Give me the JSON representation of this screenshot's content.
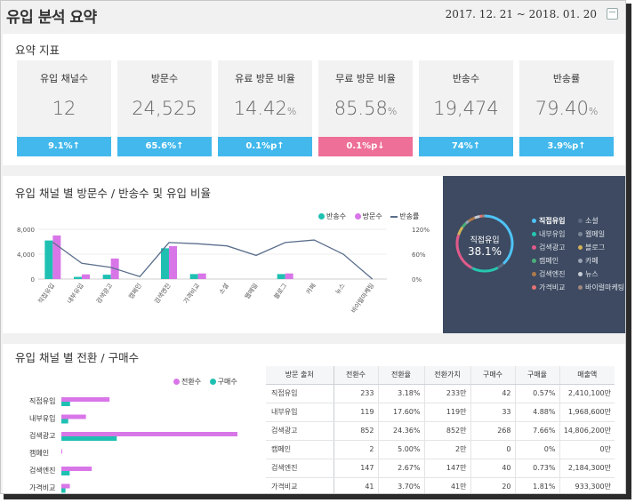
{
  "header": {
    "title": "유입 분석 요약",
    "date_range": "2017. 12. 21 ~ 2018. 01. 20",
    "calendar_icon": "calendar-icon"
  },
  "summary": {
    "title": "요약 지표",
    "cards": [
      {
        "label": "유입 채널수",
        "value": "12",
        "unit": "",
        "change": "9.1%↑",
        "color": "#42b8ec"
      },
      {
        "label": "방문수",
        "value": "24,525",
        "unit": "",
        "change": "65.6%↑",
        "color": "#42b8ec"
      },
      {
        "label": "유료 방문 비율",
        "value": "14.42",
        "unit": "%",
        "change": "0.1%p↑",
        "color": "#42b8ec"
      },
      {
        "label": "무료 방문 비율",
        "value": "85.58",
        "unit": "%",
        "change": "0.1%p↓",
        "color": "#ee6f97"
      },
      {
        "label": "반송수",
        "value": "19,474",
        "unit": "",
        "change": "74%↑",
        "color": "#42b8ec"
      },
      {
        "label": "반송률",
        "value": "79.40",
        "unit": "%",
        "change": "3.9%p↑",
        "color": "#42b8ec"
      }
    ]
  },
  "channel_section": {
    "title": "유입 채널 별 방문수 / 반송수 및 유입 비율",
    "legend": [
      "반송수",
      "방문수",
      "반송률"
    ],
    "donut": {
      "label": "직접유입",
      "value": "38.1%"
    },
    "donut_legend": [
      {
        "name": "직접유입",
        "color": "#4fc3f7",
        "bold": true
      },
      {
        "name": "소셜",
        "color": "#5c6b80",
        "bold": false
      },
      {
        "name": "내부유입",
        "color": "#26c6b0",
        "bold": false
      },
      {
        "name": "웹메일",
        "color": "#7a8597",
        "bold": false
      },
      {
        "name": "검색광고",
        "color": "#e05a8a",
        "bold": false
      },
      {
        "name": "블로그",
        "color": "#d4b25a",
        "bold": false
      },
      {
        "name": "캠페인",
        "color": "#4caf7a",
        "bold": false
      },
      {
        "name": "카페",
        "color": "#9aa3b3",
        "bold": false
      },
      {
        "name": "검색엔진",
        "color": "#b07a4a",
        "bold": false
      },
      {
        "name": "뉴스",
        "color": "#c7cdd6",
        "bold": false
      },
      {
        "name": "가격비교",
        "color": "#e57373",
        "bold": false
      },
      {
        "name": "바이럴마케팅",
        "color": "#a1887f",
        "bold": false
      }
    ]
  },
  "conversion_section": {
    "title": "유입 채널 별 전환 / 구매수",
    "legend": [
      "전환수",
      "구매수"
    ],
    "table": {
      "headers": [
        "방문 출처",
        "전환수",
        "전환율",
        "전환가치",
        "구매수",
        "구매율",
        "매출액"
      ],
      "rows": [
        [
          "직접유입",
          "233",
          "3.18%",
          "233만",
          "42",
          "0.57%",
          "2,410,100만"
        ],
        [
          "내부유입",
          "119",
          "17.60%",
          "119만",
          "33",
          "4.88%",
          "1,968,600만"
        ],
        [
          "검색광고",
          "852",
          "24.36%",
          "852만",
          "268",
          "7.66%",
          "14,806,200만"
        ],
        [
          "캠페인",
          "2",
          "5.00%",
          "2만",
          "0",
          "0%",
          "0만"
        ],
        [
          "검색엔진",
          "147",
          "2.67%",
          "147만",
          "40",
          "0.73%",
          "2,184,300만"
        ],
        [
          "가격비교",
          "41",
          "3.70%",
          "41만",
          "20",
          "1.81%",
          "933,300만"
        ]
      ]
    }
  },
  "chart_data": [
    {
      "type": "bar",
      "title": "유입 채널 별 방문수 / 반송수 및 유입 비율",
      "categories": [
        "직접유입",
        "내부유입",
        "검색광고",
        "캠페인",
        "검색엔진",
        "가격비교",
        "소셜",
        "웹메일",
        "블로그",
        "카페",
        "뉴스",
        "바이럴마케팅"
      ],
      "series": [
        {
          "name": "반송수",
          "kind": "bar",
          "axis": "left",
          "color": "#1fc0b2",
          "values": [
            6200,
            350,
            700,
            0,
            4950,
            800,
            0,
            0,
            800,
            0,
            0,
            0
          ]
        },
        {
          "name": "방문수",
          "kind": "bar",
          "axis": "left",
          "color": "#d876e8",
          "values": [
            7000,
            750,
            3300,
            0,
            5300,
            900,
            0,
            0,
            900,
            0,
            0,
            0
          ]
        },
        {
          "name": "반송률",
          "kind": "line",
          "axis": "right",
          "color": "#5a6e8c",
          "values": [
            89,
            38,
            28,
            6,
            88,
            85,
            80,
            57,
            88,
            94,
            60,
            0
          ]
        }
      ],
      "yticks_left": [
        "0",
        "4,000",
        "8,000"
      ],
      "yticks_right": [
        "0%",
        "60%",
        "120%"
      ],
      "ylim_left": [
        0,
        8000
      ],
      "ylim_right": [
        0,
        120
      ]
    },
    {
      "type": "pie",
      "title": "",
      "center_label": "직접유입",
      "center_value": "38.1%",
      "categories": [
        "직접유입",
        "내부유입",
        "검색광고",
        "캠페인",
        "검색엔진",
        "가격비교",
        "소셜",
        "웹메일",
        "블로그",
        "카페",
        "뉴스",
        "바이럴마케팅"
      ],
      "values": [
        38.1,
        4,
        15,
        1,
        22,
        5,
        3,
        2,
        4,
        3,
        1.5,
        1.4
      ]
    },
    {
      "type": "bar",
      "orientation": "horizontal",
      "title": "유입 채널 별 전환 / 구매수",
      "categories": [
        "직접유입",
        "내부유입",
        "검색광고",
        "캠페인",
        "검색엔진",
        "가격비교"
      ],
      "series": [
        {
          "name": "전환수",
          "color": "#d876e8",
          "values": [
            233,
            119,
            852,
            2,
            147,
            41
          ]
        },
        {
          "name": "구매수",
          "color": "#1fc0b2",
          "values": [
            42,
            33,
            268,
            0,
            40,
            20
          ]
        }
      ]
    }
  ]
}
